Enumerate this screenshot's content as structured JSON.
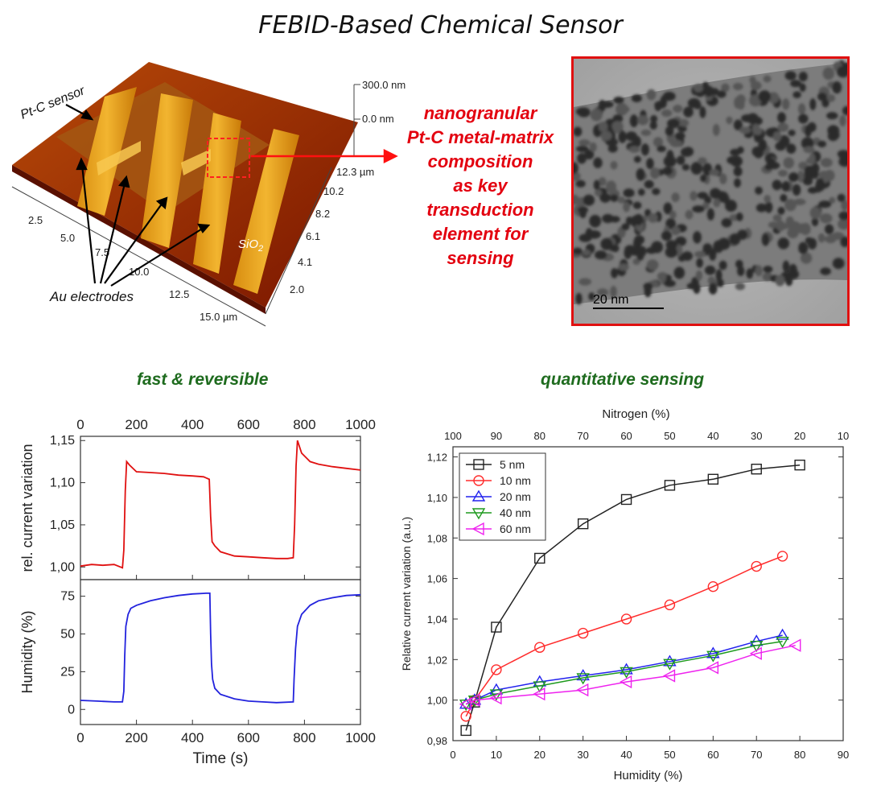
{
  "title": "FEBID-Based Chemical Sensor",
  "afm": {
    "label_sensor": "Pt-C sensor",
    "label_electrodes": "Au electrodes",
    "label_substrate_base": "SiO",
    "label_substrate_sub": "2",
    "z_ticks": [
      "300.0 nm",
      "0.0 nm"
    ],
    "y_ticks": [
      "12.3 µm",
      "10.2",
      "8.2",
      "6.1",
      "4.1",
      "2.0"
    ],
    "x_ticks": [
      "2.5",
      "5.0",
      "7.5",
      "10.0",
      "12.5",
      "15.0 µm"
    ]
  },
  "annotation": {
    "lines": [
      "nanogranular",
      "Pt-C metal-matrix",
      "composition",
      "as key",
      "transduction",
      "element for",
      "sensing"
    ]
  },
  "tem": {
    "scale_label": "20 nm"
  },
  "left_panel": {
    "title": "fast & reversible"
  },
  "right_panel": {
    "title": "quantitative sensing"
  },
  "colors": {
    "red": "#e3000f",
    "green_title": "#1e6b1e",
    "current": "#e01010",
    "humidity": "#2222dd"
  },
  "chart_data": [
    {
      "type": "line",
      "title": "",
      "xlabel": "",
      "ylabel": "rel. current variation",
      "xlim": [
        0,
        1000
      ],
      "ylim": [
        0.985,
        1.155
      ],
      "x_ticks": [
        0,
        200,
        400,
        600,
        800,
        1000
      ],
      "y_ticks": [
        1.0,
        1.05,
        1.1,
        1.15
      ],
      "y_tick_labels": [
        "1,00",
        "1,05",
        "1,10",
        "1,15"
      ],
      "series": [
        {
          "name": "",
          "color": "#e01010",
          "x": [
            0,
            40,
            80,
            120,
            150,
            155,
            160,
            165,
            175,
            200,
            250,
            300,
            350,
            400,
            440,
            460,
            465,
            470,
            480,
            500,
            550,
            600,
            650,
            700,
            740,
            760,
            765,
            770,
            775,
            790,
            820,
            850,
            900,
            950,
            1000
          ],
          "y": [
            1.001,
            1.003,
            1.002,
            1.003,
            0.999,
            1.02,
            1.09,
            1.125,
            1.121,
            1.113,
            1.112,
            1.111,
            1.109,
            1.108,
            1.107,
            1.104,
            1.06,
            1.03,
            1.025,
            1.018,
            1.013,
            1.012,
            1.011,
            1.01,
            1.01,
            1.011,
            1.05,
            1.12,
            1.15,
            1.135,
            1.125,
            1.122,
            1.119,
            1.117,
            1.115
          ]
        }
      ]
    },
    {
      "type": "line",
      "title": "",
      "xlabel": "Time (s)",
      "ylabel": "Humidity (%)",
      "xlim": [
        0,
        1000
      ],
      "ylim": [
        -10,
        86
      ],
      "x_ticks": [
        0,
        200,
        400,
        600,
        800,
        1000
      ],
      "y_ticks": [
        0,
        25,
        50,
        75
      ],
      "series": [
        {
          "name": "",
          "color": "#2222dd",
          "x": [
            0,
            60,
            120,
            150,
            155,
            158,
            162,
            170,
            180,
            200,
            250,
            300,
            350,
            400,
            450,
            462,
            465,
            468,
            472,
            480,
            500,
            550,
            600,
            650,
            700,
            760,
            763,
            768,
            775,
            790,
            820,
            850,
            900,
            950,
            1000
          ],
          "y": [
            6,
            5.5,
            5,
            5,
            12,
            35,
            55,
            63,
            67,
            69,
            72,
            74,
            75.5,
            76.5,
            77,
            77,
            50,
            30,
            20,
            14,
            10,
            7,
            5.5,
            5,
            4.5,
            5,
            20,
            40,
            55,
            63,
            69,
            72,
            74,
            75.5,
            76
          ]
        }
      ]
    },
    {
      "type": "line",
      "title": "",
      "xlabel": "Humidity (%)",
      "ylabel": "Relative current variation (a.u.)",
      "x2label": "Nitrogen (%)",
      "xlim": [
        0,
        90
      ],
      "ylim": [
        0.98,
        1.125
      ],
      "x_ticks": [
        0,
        10,
        20,
        30,
        40,
        50,
        60,
        70,
        80,
        90
      ],
      "y_ticks": [
        0.98,
        1.0,
        1.02,
        1.04,
        1.06,
        1.08,
        1.1,
        1.12
      ],
      "y_tick_labels": [
        "0,98",
        "1,00",
        "1,02",
        "1,04",
        "1,06",
        "1,08",
        "1,10",
        "1,12"
      ],
      "x2_tick_labels": [
        "100",
        "90",
        "80",
        "70",
        "60",
        "50",
        "40",
        "30",
        "20",
        "10"
      ],
      "legend": "top-left",
      "series": [
        {
          "name": "5 nm",
          "color": "#222222",
          "marker": "square",
          "x": [
            3,
            5,
            10,
            20,
            30,
            40,
            50,
            60,
            70,
            80
          ],
          "y": [
            0.985,
            0.999,
            1.036,
            1.07,
            1.087,
            1.099,
            1.106,
            1.109,
            1.114,
            1.116
          ]
        },
        {
          "name": "10 nm",
          "color": "#ff2b2b",
          "marker": "circle",
          "x": [
            3,
            5,
            10,
            20,
            30,
            40,
            50,
            60,
            70,
            76
          ],
          "y": [
            0.992,
            1.0,
            1.015,
            1.026,
            1.033,
            1.04,
            1.047,
            1.056,
            1.066,
            1.071
          ]
        },
        {
          "name": "20 nm",
          "color": "#2222ee",
          "marker": "triangle-up",
          "x": [
            3,
            5,
            10,
            20,
            30,
            40,
            50,
            60,
            70,
            76
          ],
          "y": [
            0.998,
            1.0,
            1.005,
            1.009,
            1.012,
            1.015,
            1.019,
            1.023,
            1.029,
            1.032
          ]
        },
        {
          "name": "40 nm",
          "color": "#1e9a1e",
          "marker": "triangle-down",
          "x": [
            3,
            5,
            10,
            20,
            30,
            40,
            50,
            60,
            70,
            76
          ],
          "y": [
            0.998,
            1.0,
            1.003,
            1.007,
            1.011,
            1.014,
            1.018,
            1.022,
            1.027,
            1.029
          ]
        },
        {
          "name": "60 nm",
          "color": "#ee22ee",
          "marker": "triangle-left",
          "x": [
            3,
            5,
            10,
            20,
            30,
            40,
            50,
            60,
            70,
            79
          ],
          "y": [
            0.998,
            1.0,
            1.001,
            1.003,
            1.005,
            1.009,
            1.012,
            1.016,
            1.023,
            1.027
          ]
        }
      ]
    }
  ]
}
